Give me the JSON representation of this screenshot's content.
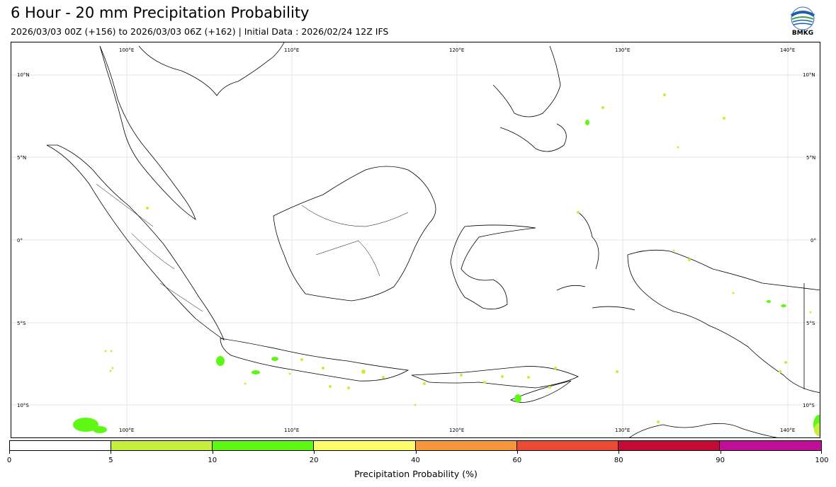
{
  "title": "6 Hour - 20 mm Precipitation Probability",
  "subtitle": "2026/03/03 00Z (+156) to 2026/03/03 06Z (+162) | Initial Data : 2026/02/24 12Z IFS",
  "logo": {
    "text": "BMKG",
    "icon": "bmkg-logo-icon"
  },
  "map": {
    "longitude_labels": [
      "100°E",
      "110°E",
      "120°E",
      "130°E",
      "140°E"
    ],
    "latitude_labels": [
      "10°N",
      "5°N",
      "0°",
      "5°S",
      "10°S"
    ],
    "gridlines": true
  },
  "colorbar": {
    "label": "Precipitation Probability (%)",
    "ticks": [
      "0",
      "5",
      "10",
      "20",
      "40",
      "60",
      "80",
      "90",
      "100"
    ],
    "colors": [
      "#ffffff",
      "#c5ef3b",
      "#5ef814",
      "#fffc6b",
      "#f8963c",
      "#ec4a32",
      "#c40a35",
      "#c20d96"
    ]
  }
}
